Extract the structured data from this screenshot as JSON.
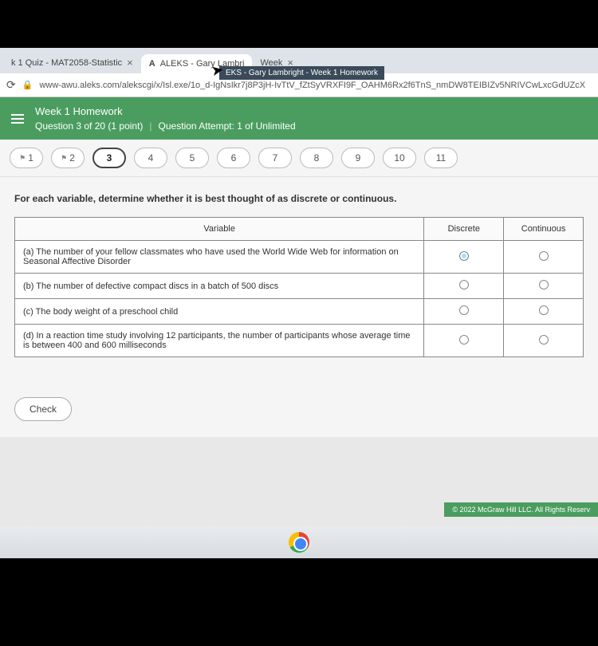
{
  "browser": {
    "tabs": [
      {
        "label": "k 1 Quiz - MAT2058-Statistic",
        "active": false
      },
      {
        "label": "ALEKS - Gary Lambri",
        "active": true,
        "iconLetter": "A"
      },
      {
        "label": "Week",
        "active": false
      }
    ],
    "tooltip": "EKS - Gary Lambright - Week 1 Homework",
    "url": "www-awu.aleks.com/alekscgi/x/Isl.exe/1o_d-IgNsIkr7j8P3jH-IvTtV_fZtSyVRXFI9F_OAHM6Rx2f6TnS_nmDW8TEIBIZv5NRIVCwLxcGdUZcX"
  },
  "header": {
    "title": "Week 1 Homework",
    "questionOf": "Question 3 of 20 (1 point)",
    "attempt": "Question Attempt: 1 of Unlimited"
  },
  "nav": {
    "items": [
      "1",
      "2",
      "3",
      "4",
      "5",
      "6",
      "7",
      "8",
      "9",
      "10",
      "11"
    ],
    "flagged": [
      0,
      1
    ],
    "current": 2
  },
  "question": {
    "prompt": "For each variable, determine whether it is best thought of as discrete or continuous.",
    "headers": {
      "var": "Variable",
      "d": "Discrete",
      "c": "Continuous"
    },
    "rows": [
      {
        "text": "(a) The number of your fellow classmates who have used the World Wide Web for information on Seasonal Affective Disorder",
        "selected": "d"
      },
      {
        "text": "(b) The number of defective compact discs in a batch of 500 discs",
        "selected": null
      },
      {
        "text": "(c) The body weight of a preschool child",
        "selected": null
      },
      {
        "text": "(d) In a reaction time study involving 12 participants, the number of participants whose average time is between 400 and 600 milliseconds",
        "selected": null
      }
    ]
  },
  "buttons": {
    "check": "Check"
  },
  "footer": "© 2022 McGraw Hill LLC. All Rights Reserv"
}
